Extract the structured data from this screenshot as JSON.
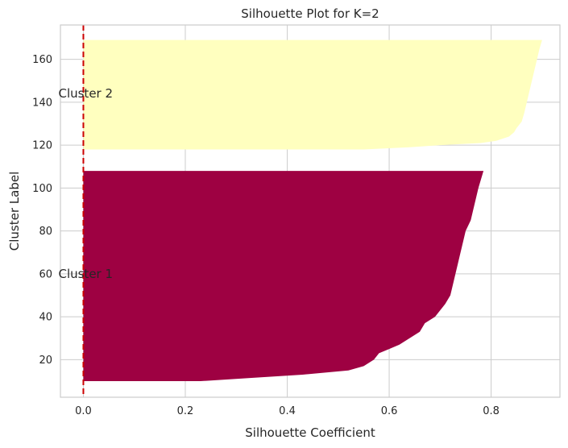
{
  "chart_data": {
    "type": "area",
    "title": "Silhouette Plot for K=2",
    "xlabel": "Silhouette Coefficient",
    "ylabel": "Cluster Label",
    "xlim": [
      -0.045,
      0.935
    ],
    "ylim": [
      2.5,
      176
    ],
    "xticks": [
      0.0,
      0.2,
      0.4,
      0.6,
      0.8
    ],
    "xtick_labels": [
      "0.0",
      "0.2",
      "0.4",
      "0.6",
      "0.8"
    ],
    "yticks": [
      20,
      40,
      60,
      80,
      100,
      120,
      140,
      160
    ],
    "ytick_labels": [
      "20",
      "40",
      "60",
      "80",
      "100",
      "120",
      "140",
      "160"
    ],
    "grid": true,
    "reference_line": {
      "x": 0.0,
      "color": "#cc0000",
      "style": "dashed"
    },
    "series": [
      {
        "name": "Cluster 1",
        "color": "#9e0142",
        "y_range": [
          10,
          108
        ],
        "label_position": [
          0.0,
          60
        ],
        "profile": [
          [
            10,
            0.23
          ],
          [
            11.5,
            0.33
          ],
          [
            13,
            0.43
          ],
          [
            15,
            0.52
          ],
          [
            17,
            0.55
          ],
          [
            20,
            0.57
          ],
          [
            23,
            0.58
          ],
          [
            25,
            0.6
          ],
          [
            27,
            0.62
          ],
          [
            30,
            0.64
          ],
          [
            33,
            0.66
          ],
          [
            37,
            0.67
          ],
          [
            40,
            0.69
          ],
          [
            43,
            0.7
          ],
          [
            46,
            0.71
          ],
          [
            50,
            0.72
          ],
          [
            55,
            0.725
          ],
          [
            60,
            0.73
          ],
          [
            65,
            0.735
          ],
          [
            70,
            0.74
          ],
          [
            75,
            0.745
          ],
          [
            80,
            0.75
          ],
          [
            85,
            0.76
          ],
          [
            90,
            0.765
          ],
          [
            95,
            0.77
          ],
          [
            100,
            0.775
          ],
          [
            104,
            0.78
          ],
          [
            108,
            0.785
          ]
        ]
      },
      {
        "name": "Cluster 2",
        "color": "#ffffbf",
        "y_range": [
          118,
          169
        ],
        "label_position": [
          0.0,
          144
        ],
        "profile": [
          [
            118,
            0.55
          ],
          [
            119,
            0.64
          ],
          [
            120,
            0.7
          ],
          [
            121,
            0.78
          ],
          [
            122,
            0.81
          ],
          [
            124,
            0.835
          ],
          [
            126,
            0.845
          ],
          [
            128,
            0.85
          ],
          [
            131,
            0.86
          ],
          [
            135,
            0.865
          ],
          [
            140,
            0.87
          ],
          [
            145,
            0.875
          ],
          [
            150,
            0.88
          ],
          [
            155,
            0.885
          ],
          [
            160,
            0.89
          ],
          [
            165,
            0.895
          ],
          [
            169,
            0.9
          ]
        ]
      }
    ]
  }
}
